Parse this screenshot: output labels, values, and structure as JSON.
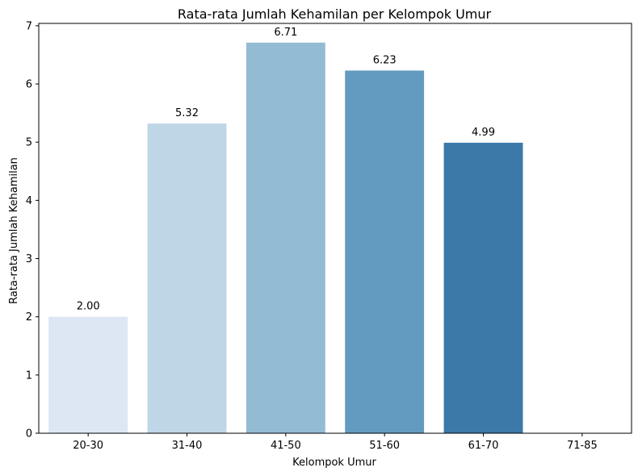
{
  "chart_data": {
    "type": "bar",
    "title": "Rata-rata Jumlah Kehamilan per Kelompok Umur",
    "xlabel": "Kelompok Umur",
    "ylabel": "Rata-rata Jumlah Kehamilan",
    "categories": [
      "20-30",
      "31-40",
      "41-50",
      "51-60",
      "61-70",
      "71-85"
    ],
    "values": [
      2.0,
      5.32,
      6.71,
      6.23,
      4.99,
      null
    ],
    "data_labels": [
      "2.00",
      "5.32",
      "6.71",
      "6.23",
      "4.99",
      ""
    ],
    "colors": [
      "#dce7f3",
      "#bfd6e7",
      "#93bbd4",
      "#629bbf",
      "#3c78a8",
      "#2b5f8f"
    ],
    "ylim": [
      0,
      7.04
    ],
    "yticks": [
      0,
      1,
      2,
      3,
      4,
      5,
      6,
      7
    ],
    "ytick_labels": [
      "0",
      "1",
      "2",
      "3",
      "4",
      "5",
      "6",
      "7"
    ],
    "grid": false,
    "legend": "none"
  }
}
